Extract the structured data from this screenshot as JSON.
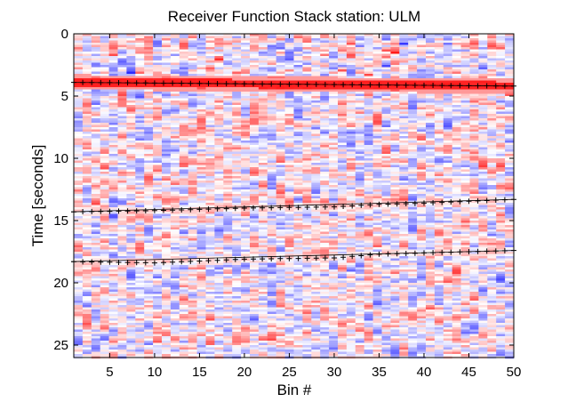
{
  "chart_data": {
    "type": "heatmap",
    "title": "Receiver Function Stack   station: ULM",
    "xlabel": "Bin #",
    "ylabel": "Time [seconds]",
    "xlim": [
      1,
      50
    ],
    "ylim": [
      26,
      0
    ],
    "y_reversed": true,
    "x_ticks": [
      5,
      10,
      15,
      20,
      25,
      30,
      35,
      40,
      45,
      50
    ],
    "y_ticks": [
      0,
      5,
      10,
      15,
      20,
      25
    ],
    "n_bins": 50,
    "colormap": {
      "negative": "#2a2aff",
      "zero": "#ffffff",
      "positive": "#ff1a1a"
    },
    "series": [
      {
        "x": [
          1,
          50
        ],
        "y": [
          3.9,
          4.2
        ]
      },
      {
        "x": [
          1,
          10,
          20,
          30,
          35,
          40,
          50
        ],
        "y": [
          14.3,
          14.2,
          14.0,
          13.9,
          13.7,
          13.6,
          13.3
        ]
      },
      {
        "x": [
          1,
          10,
          20,
          30,
          35,
          40,
          50
        ],
        "y": [
          18.3,
          18.4,
          18.1,
          18.0,
          17.7,
          17.6,
          17.4
        ]
      }
    ]
  }
}
